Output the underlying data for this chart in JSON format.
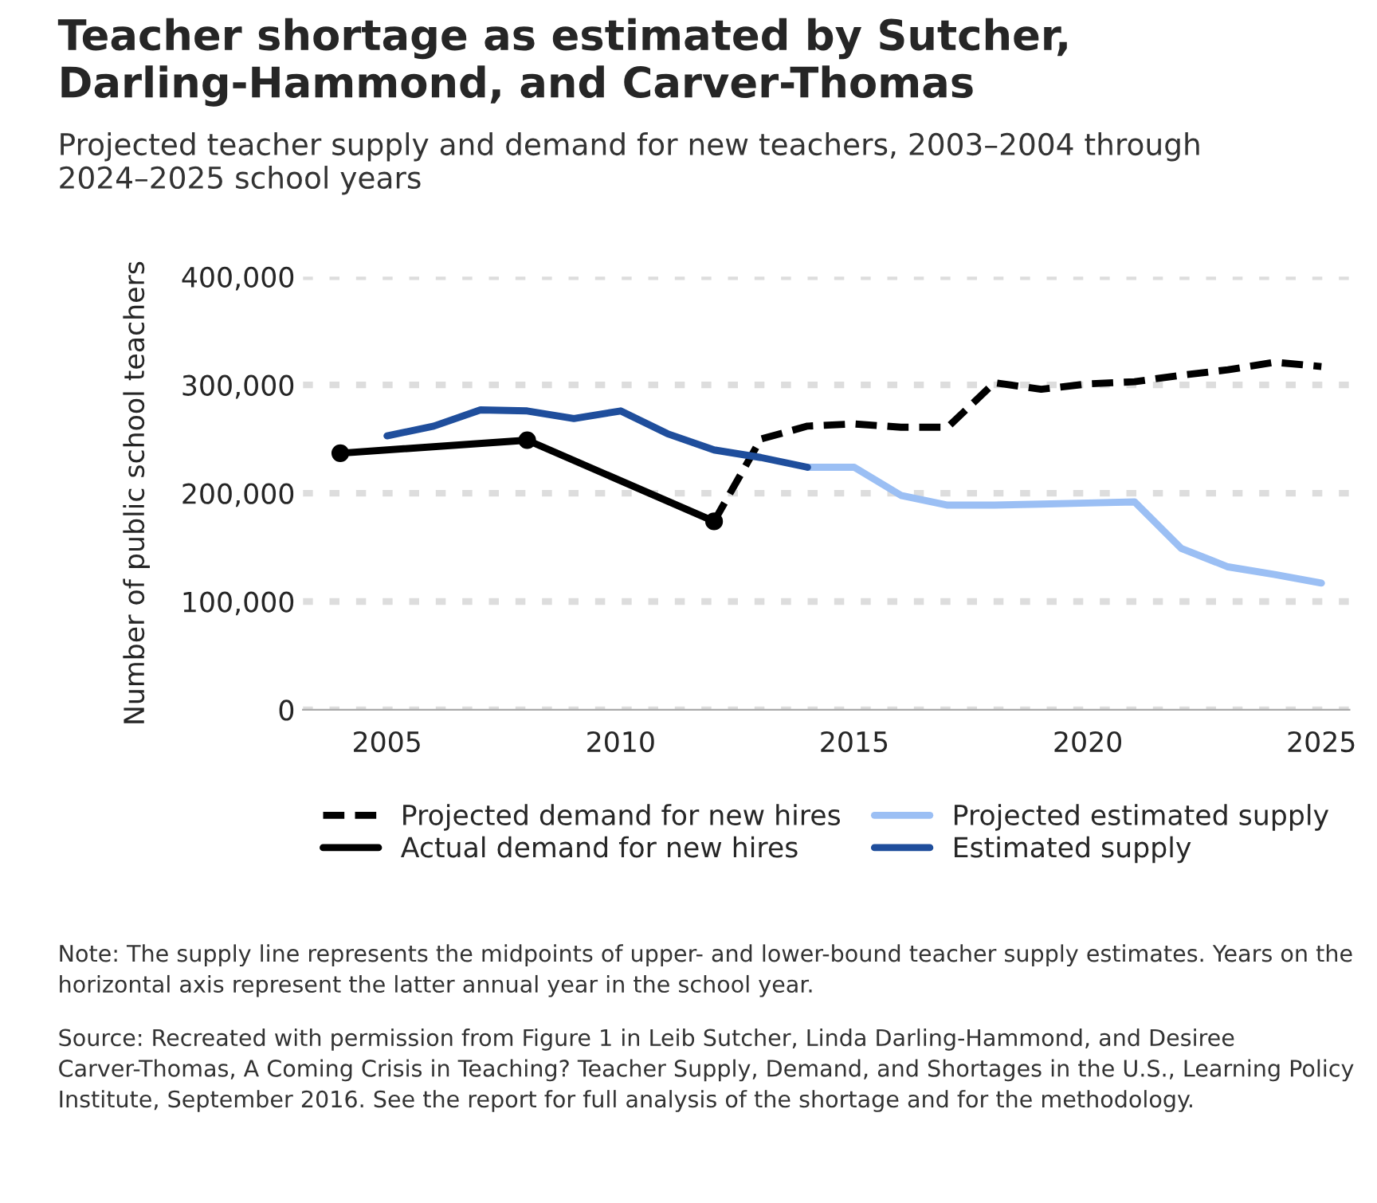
{
  "chart_data": {
    "type": "line",
    "title": "Teacher shortage as estimated by Sutcher, Darling-Hammond, and Carver-Thomas",
    "subtitle": "Projected teacher supply and demand for new teachers, 2003–2004 through 2024–2025 school years",
    "ylabel": "Number of public school teachers",
    "series": [
      {
        "name": "Projected demand for new hires",
        "color": "#000000",
        "line_style": "dashed",
        "marker": "none",
        "x": [
          2012,
          2013,
          2014,
          2015,
          2016,
          2017,
          2018,
          2019,
          2020,
          2021,
          2022,
          2023,
          2024,
          2025
        ],
        "values": [
          174000,
          250000,
          262000,
          264000,
          261000,
          261000,
          302000,
          296000,
          301000,
          303000,
          309000,
          314000,
          321000,
          317000
        ]
      },
      {
        "name": "Actual demand for new hires",
        "color": "#000000",
        "line_style": "solid",
        "marker": "circle",
        "x": [
          2004,
          2008,
          2012
        ],
        "values": [
          237000,
          249000,
          174000
        ]
      },
      {
        "name": "Projected estimated supply",
        "color": "#9bbff4",
        "line_style": "solid",
        "marker": "none",
        "x": [
          2014,
          2015,
          2016,
          2017,
          2018,
          2019,
          2020,
          2021,
          2022,
          2023,
          2024,
          2025
        ],
        "values": [
          224000,
          224000,
          198000,
          189000,
          189000,
          190000,
          191000,
          192000,
          149000,
          132000,
          125000,
          117000
        ]
      },
      {
        "name": "Estimated supply",
        "color": "#1f4e9c",
        "line_style": "solid",
        "marker": "none",
        "x": [
          2005,
          2006,
          2007,
          2008,
          2009,
          2010,
          2011,
          2012,
          2013,
          2014
        ],
        "values": [
          253000,
          262000,
          277000,
          276000,
          269000,
          276000,
          255000,
          240000,
          233000,
          224000
        ]
      }
    ],
    "xlim": [
      2003.2,
      2025.6
    ],
    "xticks": [
      2005,
      2010,
      2015,
      2020,
      2025
    ],
    "ylim": [
      0,
      400000
    ],
    "yticks": [
      0,
      {
        "value": 100000,
        "label": "100,000"
      },
      {
        "value": 200000,
        "label": "200,000"
      },
      {
        "value": 300000,
        "label": "300,000"
      },
      {
        "value": 400000,
        "label": "400,000"
      }
    ],
    "grid": "y",
    "legend": "bottom",
    "annotations": [
      "Note: The supply line represents the midpoints of upper- and lower-bound teacher supply estimates. Years on the horizontal axis represent the latter annual year in the school year.",
      "Source: Recreated with permission from Figure 1 in Leib Sutcher, Linda Darling-Hammond, and Desiree Carver-Thomas, A Coming Crisis in Teaching? Teacher Supply, Demand, and Shortages in the U.S., Learning Policy Institute, September 2016. See the report for full analysis of the shortage and for the methodology."
    ]
  }
}
